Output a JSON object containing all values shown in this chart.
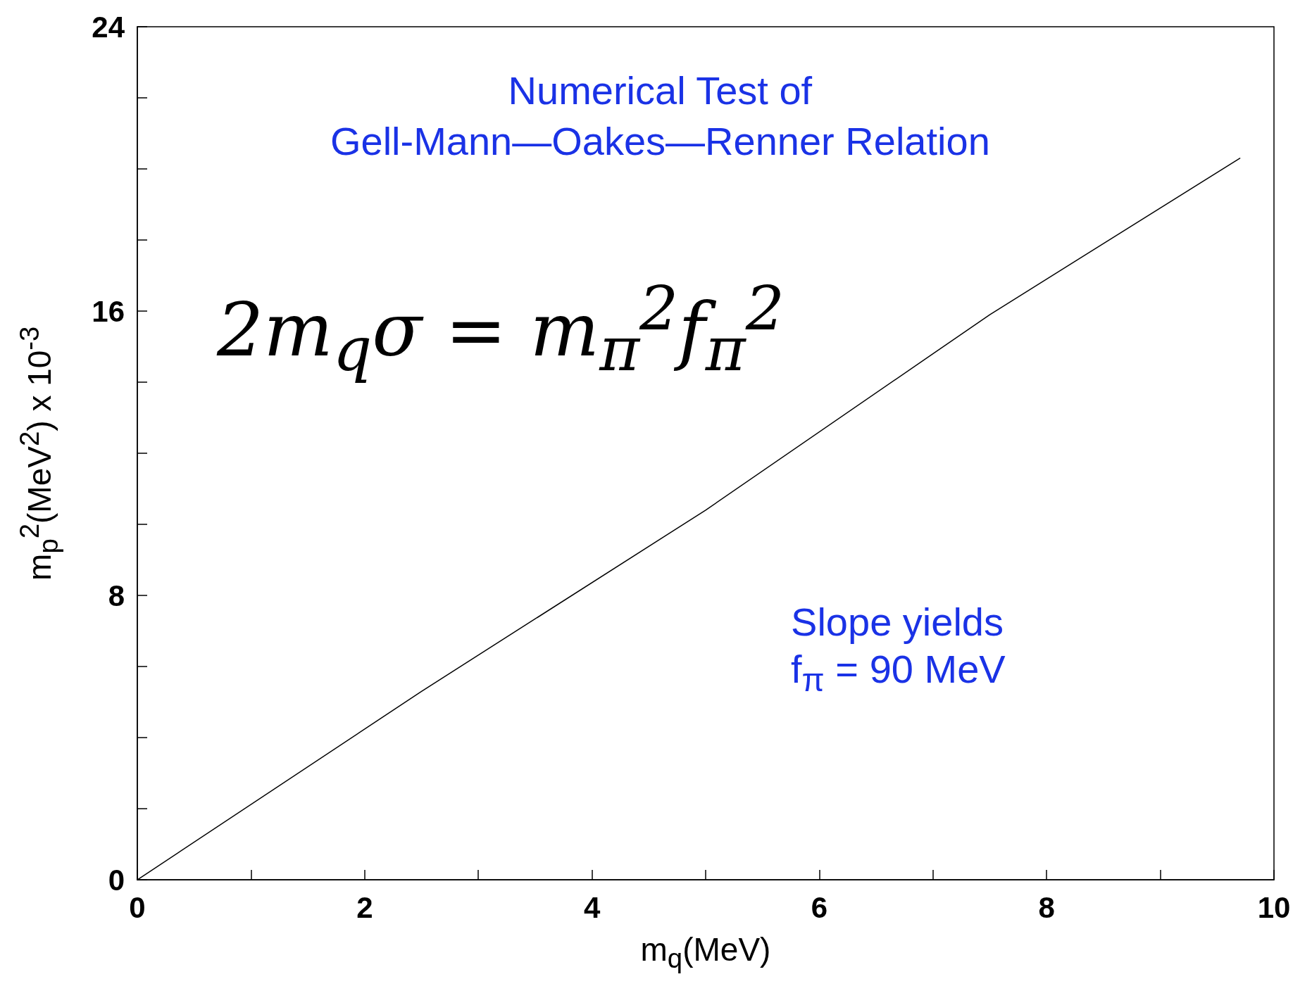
{
  "chart_data": {
    "type": "line",
    "title": "Numerical Test of\nGell-Mann—Oakes—Renner Relation",
    "xlabel": "m$_{q}$(MeV)",
    "ylabel": "m$_{p}$$^{2}$(MeV$^{2}$) x 10$^{-3}$",
    "x": [
      0,
      2.5,
      5,
      7.5,
      9.7
    ],
    "series": [
      {
        "color": "#000000",
        "values": [
          0,
          5.3,
          10.4,
          15.9,
          20.3
        ]
      }
    ],
    "xlim": [
      0,
      10
    ],
    "xticks": [
      0,
      {
        "value": 1,
        "label": null
      },
      2,
      {
        "value": 3,
        "label": null
      },
      4,
      {
        "value": 5,
        "label": null
      },
      6,
      {
        "value": 7,
        "label": null
      },
      8,
      {
        "value": 9,
        "label": null
      },
      10
    ],
    "ylim": [
      0,
      24
    ],
    "yticks": [
      0,
      {
        "value": 2,
        "label": null
      },
      {
        "value": 4,
        "label": null
      },
      {
        "value": 6,
        "label": null
      },
      8,
      {
        "value": 10,
        "label": null
      },
      {
        "value": 12,
        "label": null
      },
      {
        "value": 14,
        "label": null
      },
      16,
      {
        "value": 18,
        "label": null
      },
      {
        "value": 20,
        "label": null
      },
      {
        "value": 22,
        "label": null
      },
      24
    ],
    "annotations": [
      "2m$_{q}$σ = m$_{π}$$^{2}$f$_{π}$$^{2}$",
      "Slope yields\nf$_{π}$ = 90 MeV"
    ],
    "grid": false,
    "marker": "none",
    "line_style": "solid"
  }
}
